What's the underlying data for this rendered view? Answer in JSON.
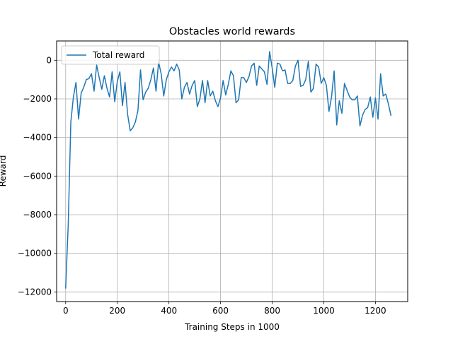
{
  "chart_data": {
    "type": "line",
    "title": "Obstacles world rewards",
    "xlabel": "Training Steps in 1000",
    "ylabel": "Reward",
    "xlim": [
      -35,
      1325
    ],
    "ylim": [
      -12500,
      1000
    ],
    "xticks": [
      0,
      200,
      400,
      600,
      800,
      1000,
      1200
    ],
    "yticks": [
      -12000,
      -10000,
      -8000,
      -6000,
      -4000,
      -2000,
      0
    ],
    "grid": true,
    "legend_position": "upper left",
    "series": [
      {
        "name": "Total reward",
        "color": "#1f77b4",
        "x": [
          0,
          10,
          20,
          30,
          40,
          50,
          60,
          70,
          80,
          90,
          100,
          110,
          120,
          130,
          140,
          150,
          160,
          170,
          180,
          190,
          200,
          210,
          220,
          230,
          240,
          250,
          260,
          270,
          280,
          290,
          300,
          310,
          320,
          330,
          340,
          350,
          360,
          370,
          380,
          390,
          400,
          410,
          420,
          430,
          440,
          450,
          460,
          470,
          480,
          490,
          500,
          510,
          520,
          530,
          540,
          550,
          560,
          570,
          580,
          590,
          600,
          610,
          620,
          630,
          640,
          650,
          660,
          670,
          680,
          690,
          700,
          710,
          720,
          730,
          740,
          750,
          760,
          770,
          780,
          790,
          800,
          810,
          820,
          830,
          840,
          850,
          860,
          870,
          880,
          890,
          900,
          910,
          920,
          930,
          940,
          950,
          960,
          970,
          980,
          990,
          1000,
          1010,
          1020,
          1030,
          1040,
          1050,
          1060,
          1070,
          1080,
          1090,
          1100,
          1110,
          1120,
          1130,
          1140,
          1150,
          1160,
          1170,
          1180,
          1190,
          1200,
          1210,
          1220,
          1230,
          1240,
          1250,
          1260
        ],
        "y": [
          -11800,
          -8500,
          -3200,
          -1900,
          -1150,
          -3050,
          -1700,
          -1400,
          -1000,
          -950,
          -700,
          -1600,
          -250,
          -900,
          -1500,
          -800,
          -1450,
          -1900,
          -600,
          -2150,
          -1100,
          -600,
          -2350,
          -1150,
          -2800,
          -3650,
          -3500,
          -3200,
          -2600,
          -500,
          -2050,
          -1650,
          -1450,
          -1000,
          -400,
          -1600,
          -100,
          -700,
          -1850,
          -1000,
          -600,
          -350,
          -550,
          -200,
          -500,
          -2000,
          -1400,
          -1150,
          -1750,
          -1300,
          -1050,
          -2400,
          -2000,
          -1050,
          -2200,
          -1050,
          -1850,
          -1600,
          -2100,
          -2400,
          -1950,
          -1050,
          -1800,
          -1250,
          -550,
          -800,
          -2200,
          -2050,
          -900,
          -900,
          -1150,
          -850,
          -300,
          -150,
          -1300,
          -300,
          -450,
          -600,
          -1250,
          450,
          -400,
          -1400,
          -150,
          -200,
          -550,
          -500,
          -1200,
          -1200,
          -1050,
          -300,
          0,
          -1350,
          -1300,
          -1000,
          -50,
          -1650,
          -1450,
          -200,
          -350,
          -1200,
          -900,
          -1300,
          -2650,
          -1900,
          -550,
          -3350,
          -2100,
          -2750,
          -1200,
          -1550,
          -1900,
          -2050,
          -2050,
          -1850,
          -3400,
          -2850,
          -2550,
          -2450,
          -1900,
          -2950,
          -1950,
          -3050,
          -700,
          -1850,
          -1750,
          -2250,
          -2850
        ]
      }
    ]
  }
}
